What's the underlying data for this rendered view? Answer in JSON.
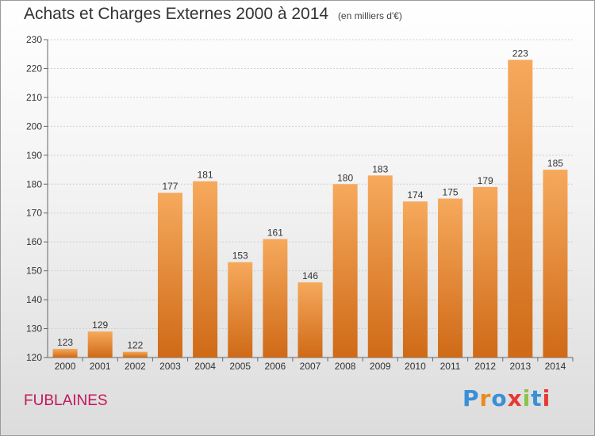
{
  "header": {
    "title": "Achats et Charges Externes 2000 à 2014",
    "subtitle": "(en milliers d'€)"
  },
  "location": "FUBLAINES",
  "logo": {
    "text": "Proxiti",
    "letter_colors": [
      "#3a8fd6",
      "#e98b1e",
      "#3a8fd6",
      "#e53935",
      "#8bc34a",
      "#3a8fd6",
      "#e53935"
    ]
  },
  "colors": {
    "bar_top": "#f6a95c",
    "bar_bottom": "#cf6a17"
  },
  "chart_data": {
    "type": "bar",
    "categories": [
      "2000",
      "2001",
      "2002",
      "2003",
      "2004",
      "2005",
      "2006",
      "2007",
      "2008",
      "2009",
      "2010",
      "2011",
      "2012",
      "2013",
      "2014"
    ],
    "values": [
      123,
      129,
      122,
      177,
      181,
      153,
      161,
      146,
      180,
      183,
      174,
      175,
      179,
      223,
      185
    ],
    "ylim": [
      120,
      230
    ],
    "yticks": [
      120,
      130,
      140,
      150,
      160,
      170,
      180,
      190,
      200,
      210,
      220,
      230
    ],
    "grid": true
  }
}
